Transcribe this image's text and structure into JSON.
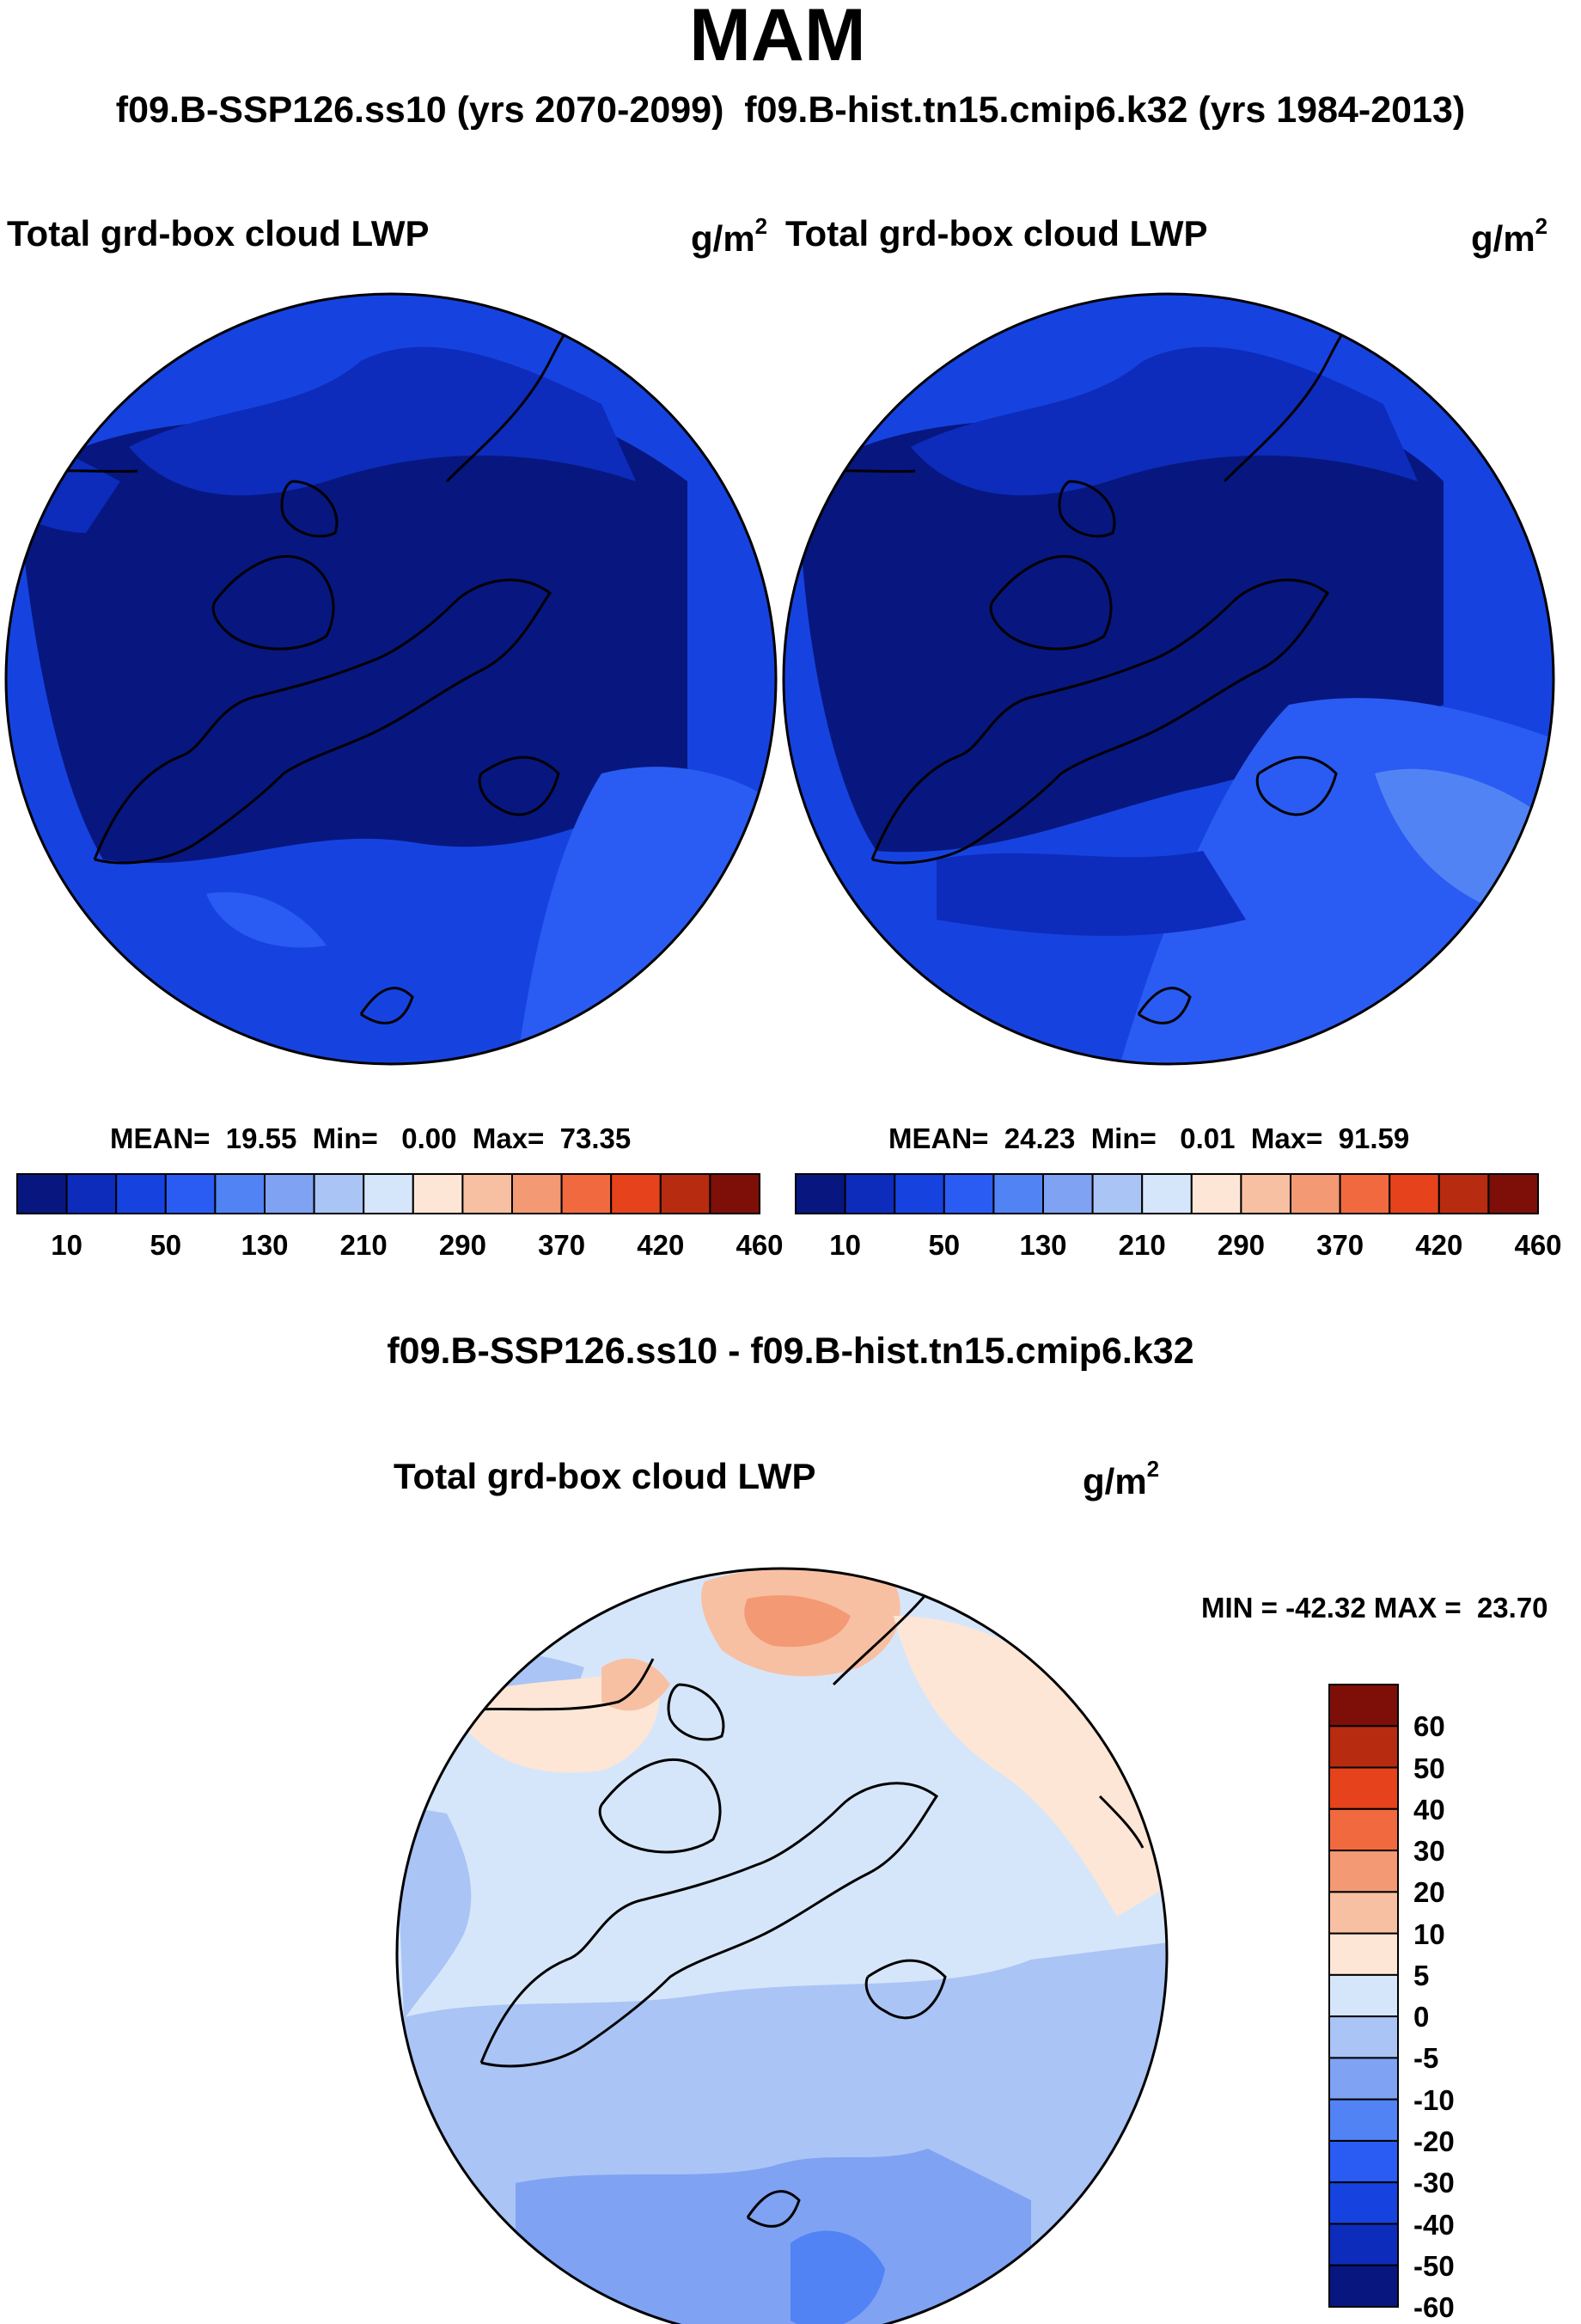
{
  "figure": {
    "title": "MAM",
    "subtitle": "f09.B-SSP126.ss10 (yrs 2070-2099)  f09.B-hist.tn15.cmip6.k32 (yrs 1984-2013)",
    "diff_title": "f09.B-SSP126.ss10 - f09.B-hist.tn15.cmip6.k32"
  },
  "colors": {
    "abs_palette": [
      "#07177f",
      "#0d2cbb",
      "#1643e0",
      "#2a5cf3",
      "#5283f5",
      "#7fa2f3",
      "#aac4f5",
      "#d6e6fa",
      "#fde6d6",
      "#f8c0a3",
      "#f39a74",
      "#f16a3f",
      "#e6431c",
      "#b72b10",
      "#7d0f08"
    ],
    "diff_palette": [
      "#07177f",
      "#0d2cbb",
      "#1643e0",
      "#2a5cf3",
      "#5283f5",
      "#7fa2f3",
      "#aac4f5",
      "#d6e6fa",
      "#fde6d6",
      "#f8c0a3",
      "#f39a74",
      "#f16a3f",
      "#e6431c",
      "#b72b10",
      "#7d0f08"
    ]
  },
  "chart_data": [
    {
      "type": "heatmap",
      "panel": "left",
      "variable": "Total grd-box cloud LWP",
      "units": "g/m",
      "units_exp": "2",
      "stats_text": "MEAN=  19.55  Min=   0.00  Max=  73.35",
      "mean": 19.55,
      "min": 0.0,
      "max": 73.35,
      "colorbar_levels": [
        10,
        50,
        130,
        210,
        290,
        370,
        420,
        460
      ],
      "tick_labels": [
        "10",
        "50",
        "130",
        "210",
        "290",
        "370",
        "420",
        "460"
      ]
    },
    {
      "type": "heatmap",
      "panel": "right",
      "variable": "Total grd-box cloud LWP",
      "units": "g/m",
      "units_exp": "2",
      "stats_text": "MEAN=  24.23  Min=   0.01  Max=  91.59",
      "mean": 24.23,
      "min": 0.01,
      "max": 91.59,
      "colorbar_levels": [
        10,
        50,
        130,
        210,
        290,
        370,
        420,
        460
      ],
      "tick_labels": [
        "10",
        "50",
        "130",
        "210",
        "290",
        "370",
        "420",
        "460"
      ]
    },
    {
      "type": "heatmap",
      "panel": "difference",
      "variable": "Total grd-box cloud LWP",
      "units": "g/m",
      "units_exp": "2",
      "stats_text": "MIN = -42.32 MAX =  23.70",
      "min": -42.32,
      "max": 23.7,
      "colorbar_levels": [
        60,
        50,
        40,
        30,
        20,
        10,
        5,
        0,
        -5,
        -10,
        -20,
        -30,
        -40,
        -50,
        -60
      ],
      "tick_labels": [
        "60",
        "50",
        "40",
        "30",
        "20",
        "10",
        "5",
        "0",
        "-5",
        "-10",
        "-20",
        "-30",
        "-40",
        "-50",
        "-60"
      ]
    }
  ]
}
